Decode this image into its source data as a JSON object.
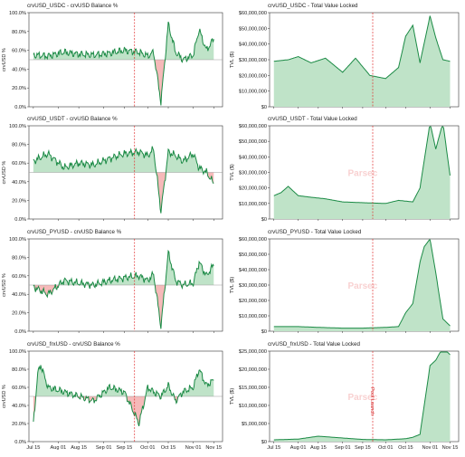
{
  "colors": {
    "line": "#1b8a45",
    "fill_above": "#bfe3c8",
    "fill_below": "#f6b9b9",
    "marker": "#e03030"
  },
  "watermark": "Parsec",
  "x_ticks": [
    "Jul 15",
    "Aug 01",
    "Aug 15",
    "Sep 01",
    "Sep 15",
    "Oct 01",
    "Oct 15",
    "Nov 01",
    "Nov 15"
  ],
  "chart_data": [
    {
      "type": "line",
      "pool": "usdc",
      "kind": "balance",
      "title": "crvUSD_USDC - crvUSD Balance %",
      "ylabel": "crvUSD %",
      "ylim": [
        0,
        100
      ],
      "baseline": 50,
      "y_ticks": [
        "0.0%",
        "20.0%",
        "40.0%",
        "60.0%",
        "80.0%",
        "100.0%"
      ],
      "y_tick_values": [
        0,
        20,
        40,
        60,
        80,
        100
      ],
      "x": [
        "Jul 15",
        "Jul 25",
        "Aug 05",
        "Aug 15",
        "Aug 25",
        "Sep 05",
        "Sep 15",
        "Sep 25",
        "Oct 01",
        "Oct 05",
        "Oct 10",
        "Oct 15",
        "Oct 20",
        "Oct 25",
        "Nov 01",
        "Nov 05",
        "Nov 10",
        "Nov 15"
      ],
      "y": [
        55,
        54,
        58,
        56,
        55,
        57,
        60,
        58,
        54,
        58,
        5,
        88,
        58,
        50,
        55,
        82,
        60,
        72
      ],
      "annotation": ""
    },
    {
      "type": "area",
      "pool": "usdc",
      "kind": "tvl",
      "title": "crvUSD_USDC - Total Value Locked",
      "ylabel": "TVL ($)",
      "ylim": [
        0,
        60000000
      ],
      "y_ticks": [
        "$0",
        "$10,000,000",
        "$20,000,000",
        "$30,000,000",
        "$40,000,000",
        "$50,000,000",
        "$60,000,000"
      ],
      "y_tick_values": [
        0,
        10000000,
        20000000,
        30000000,
        40000000,
        50000000,
        60000000
      ],
      "x": [
        "Jul 15",
        "Jul 25",
        "Aug 01",
        "Aug 10",
        "Aug 20",
        "Sep 01",
        "Sep 10",
        "Sep 20",
        "Oct 01",
        "Oct 10",
        "Oct 15",
        "Oct 20",
        "Oct 25",
        "Nov 01",
        "Nov 05",
        "Nov 10",
        "Nov 15"
      ],
      "y": [
        29000000,
        30000000,
        32000000,
        28000000,
        31000000,
        22000000,
        31000000,
        20000000,
        18000000,
        25000000,
        45000000,
        52000000,
        28000000,
        58000000,
        44000000,
        30000000,
        29000000
      ],
      "annotation": ""
    },
    {
      "type": "line",
      "pool": "usdt",
      "kind": "balance",
      "title": "crvUSD_USDT - crvUSD Balance %",
      "ylabel": "crvUSD %",
      "ylim": [
        0,
        100
      ],
      "baseline": 50,
      "y_ticks": [
        "0.0%",
        "20.0%",
        "40.0%",
        "60.0%",
        "80.0%",
        "100.0%"
      ],
      "y_tick_values": [
        0,
        20,
        40,
        60,
        80,
        100
      ],
      "x": [
        "Jul 15",
        "Jul 25",
        "Aug 05",
        "Aug 15",
        "Aug 25",
        "Sep 05",
        "Sep 15",
        "Sep 25",
        "Oct 01",
        "Oct 05",
        "Oct 10",
        "Oct 15",
        "Oct 20",
        "Oct 25",
        "Nov 01",
        "Nov 05",
        "Nov 10",
        "Nov 15"
      ],
      "y": [
        62,
        70,
        55,
        60,
        58,
        65,
        70,
        72,
        68,
        75,
        8,
        72,
        68,
        62,
        70,
        55,
        50,
        38
      ],
      "annotation": ""
    },
    {
      "type": "area",
      "pool": "usdt",
      "kind": "tvl",
      "title": "crvUSD_USDT - Total Value Locked",
      "ylabel": "TVL ($)",
      "ylim": [
        0,
        60000000
      ],
      "y_ticks": [
        "$0",
        "$10,000,000",
        "$20,000,000",
        "$30,000,000",
        "$40,000,000",
        "$50,000,000",
        "$60,000,000"
      ],
      "y_tick_values": [
        0,
        10000000,
        20000000,
        30000000,
        40000000,
        50000000,
        60000000
      ],
      "x": [
        "Jul 15",
        "Jul 20",
        "Jul 25",
        "Aug 01",
        "Aug 10",
        "Aug 20",
        "Sep 01",
        "Sep 15",
        "Oct 01",
        "Oct 10",
        "Oct 20",
        "Oct 25",
        "Nov 01",
        "Nov 05",
        "Nov 10",
        "Nov 15"
      ],
      "y": [
        15000000,
        17000000,
        21000000,
        15000000,
        14000000,
        13000000,
        11000000,
        10500000,
        10000000,
        12000000,
        11000000,
        20000000,
        62000000,
        45000000,
        62000000,
        28000000
      ],
      "annotation": ""
    },
    {
      "type": "line",
      "pool": "pyusd",
      "kind": "balance",
      "title": "crvUSD_PYUSD - crvUSD Balance %",
      "ylabel": "crvUSD %",
      "ylim": [
        0,
        100
      ],
      "baseline": 50,
      "y_ticks": [
        "0.0%",
        "20.0%",
        "40.0%",
        "60.0%",
        "80.0%",
        "100.0%"
      ],
      "y_tick_values": [
        0,
        20,
        40,
        60,
        80,
        100
      ],
      "x": [
        "Jul 15",
        "Jul 25",
        "Aug 05",
        "Aug 15",
        "Aug 25",
        "Sep 05",
        "Sep 15",
        "Sep 25",
        "Oct 01",
        "Oct 05",
        "Oct 10",
        "Oct 15",
        "Oct 20",
        "Oct 25",
        "Nov 01",
        "Nov 05",
        "Nov 10",
        "Nov 15"
      ],
      "y": [
        48,
        40,
        55,
        52,
        50,
        55,
        58,
        60,
        55,
        62,
        5,
        85,
        55,
        50,
        52,
        75,
        60,
        72
      ],
      "annotation": ""
    },
    {
      "type": "area",
      "pool": "pyusd",
      "kind": "tvl",
      "title": "crvUSD_PYUSD - Total Value Locked",
      "ylabel": "TVL ($)",
      "ylim": [
        0,
        60000000
      ],
      "y_ticks": [
        "$0",
        "$10,000,000",
        "$20,000,000",
        "$30,000,000",
        "$40,000,000",
        "$50,000,000",
        "$60,000,000"
      ],
      "y_tick_values": [
        0,
        10000000,
        20000000,
        30000000,
        40000000,
        50000000,
        60000000
      ],
      "x": [
        "Jul 15",
        "Aug 01",
        "Aug 15",
        "Sep 01",
        "Sep 15",
        "Oct 01",
        "Oct 10",
        "Oct 15",
        "Oct 20",
        "Oct 25",
        "Oct 28",
        "Nov 01",
        "Nov 05",
        "Nov 10",
        "Nov 15"
      ],
      "y": [
        3000000,
        3000000,
        2500000,
        2000000,
        2000000,
        2500000,
        3000000,
        12000000,
        18000000,
        45000000,
        55000000,
        60000000,
        38000000,
        8000000,
        3500000
      ],
      "annotation": ""
    },
    {
      "type": "line",
      "pool": "frxusd",
      "kind": "balance",
      "title": "crvUSD_frxUSD - crvUSD Balance %",
      "ylabel": "crvUSD %",
      "ylim": [
        0,
        100
      ],
      "baseline": 50,
      "y_ticks": [
        "0.0%",
        "20.0%",
        "40.0%",
        "60.0%",
        "80.0%",
        "100.0%"
      ],
      "y_tick_values": [
        0,
        20,
        40,
        60,
        80,
        100
      ],
      "x": [
        "Jul 15",
        "Jul 18",
        "Jul 20",
        "Jul 25",
        "Aug 05",
        "Aug 15",
        "Aug 25",
        "Sep 05",
        "Sep 15",
        "Sep 25",
        "Oct 01",
        "Oct 05",
        "Oct 10",
        "Oct 15",
        "Oct 20",
        "Oct 25",
        "Nov 01",
        "Nov 05",
        "Nov 10",
        "Nov 15"
      ],
      "y": [
        20,
        75,
        85,
        60,
        55,
        50,
        45,
        60,
        55,
        20,
        60,
        55,
        50,
        62,
        45,
        55,
        60,
        80,
        62,
        68
      ],
      "annotation": ""
    },
    {
      "type": "area",
      "pool": "frxusd",
      "kind": "tvl",
      "title": "crvUSD_frxUSD - Total Value Locked",
      "ylabel": "TVL ($)",
      "ylim": [
        0,
        25000000
      ],
      "y_ticks": [
        "$0",
        "$5,000,000",
        "$10,000,000",
        "$15,000,000",
        "$20,000,000",
        "$25,000,000"
      ],
      "y_tick_values": [
        0,
        5000000,
        10000000,
        15000000,
        20000000,
        25000000
      ],
      "x": [
        "Jul 15",
        "Aug 01",
        "Aug 15",
        "Sep 01",
        "Sep 15",
        "Oct 01",
        "Oct 15",
        "Oct 20",
        "Oct 25",
        "Nov 01",
        "Nov 05",
        "Nov 10",
        "Nov 15"
      ],
      "y": [
        500000,
        700000,
        1500000,
        1000000,
        600000,
        500000,
        800000,
        1200000,
        2000000,
        21000000,
        22500000,
        26000000,
        24000000
      ],
      "annotation": "Pool Launch"
    }
  ]
}
